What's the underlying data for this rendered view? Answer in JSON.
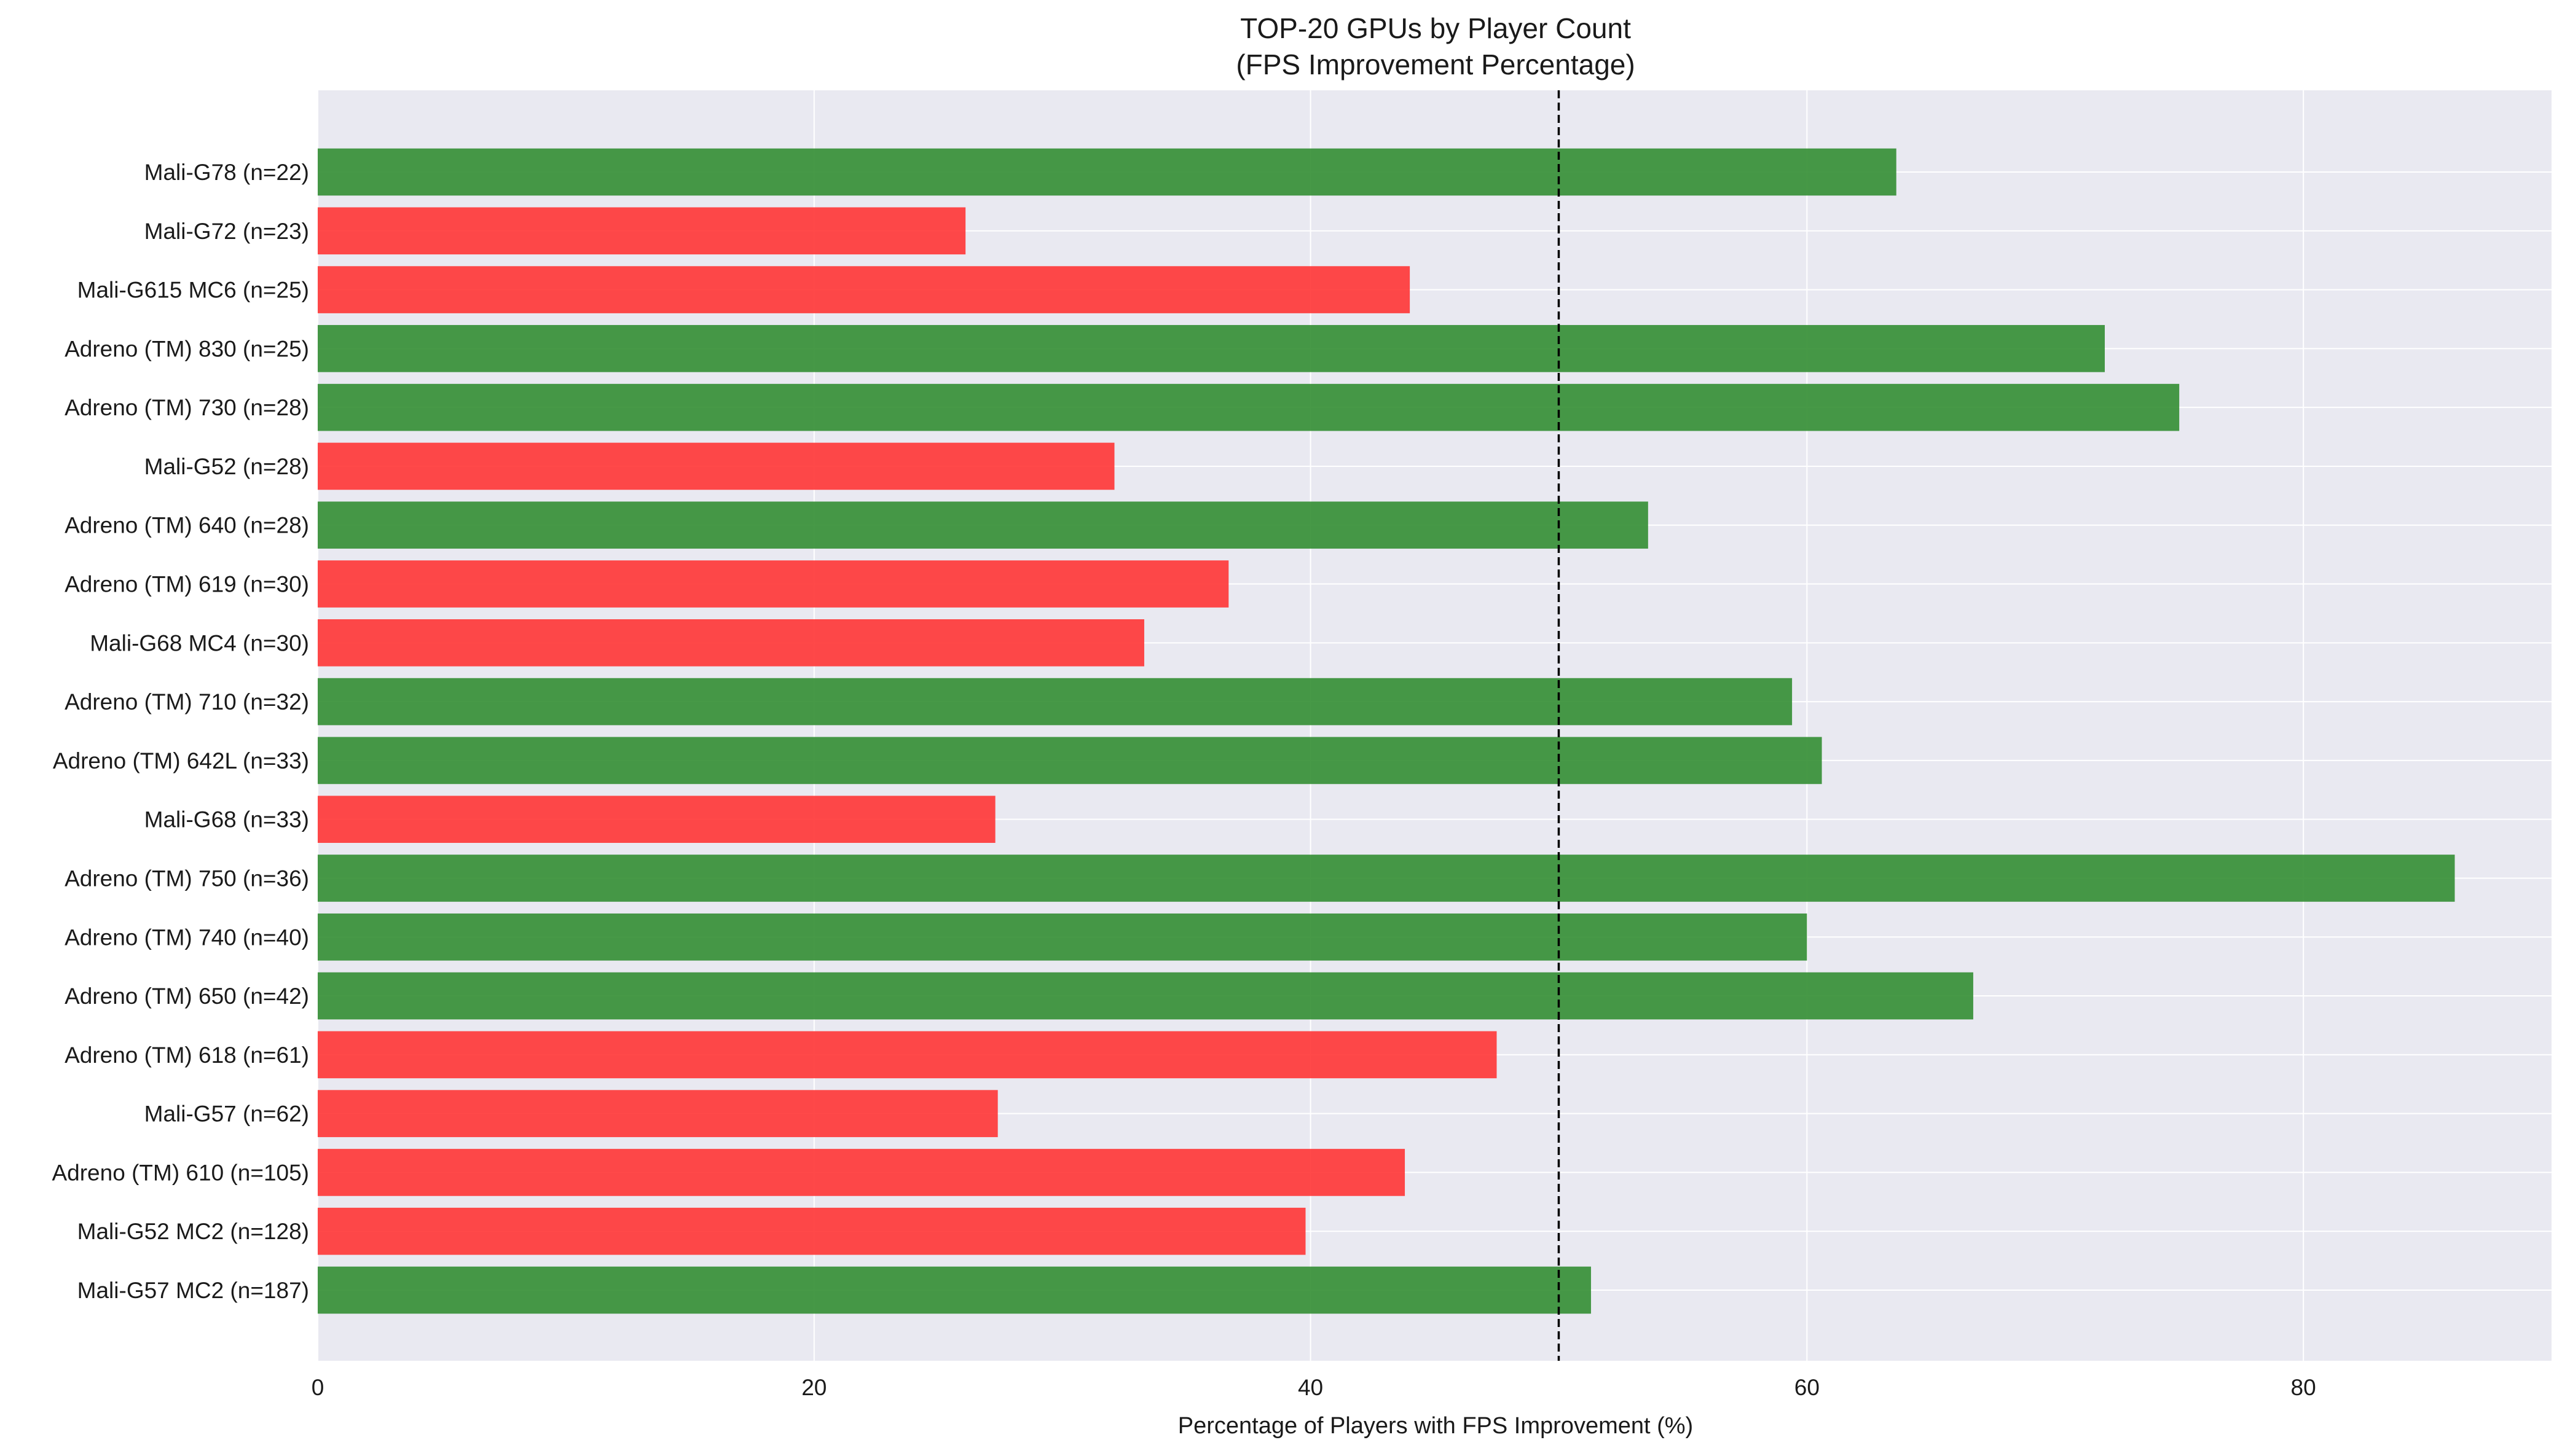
{
  "chart_data": {
    "type": "bar",
    "orientation": "horizontal",
    "title": "TOP-20 GPUs by Player Count",
    "subtitle": "(FPS Improvement Percentage)",
    "xlabel": "Percentage of Players with FPS Improvement (%)",
    "ylabel": "",
    "xlim": [
      0,
      90
    ],
    "xticks": [
      0,
      20,
      40,
      60,
      80
    ],
    "reference_line": 50,
    "grid": true,
    "colors": {
      "above": "#2e8b2e",
      "below": "#ff3030",
      "background": "#e9e9f1",
      "grid": "#ffffff",
      "refline": "#000000"
    },
    "categories": [
      "Mali-G78 (n=22)",
      "Mali-G72 (n=23)",
      "Mali-G615 MC6 (n=25)",
      "Adreno (TM) 830 (n=25)",
      "Adreno (TM) 730 (n=28)",
      "Mali-G52 (n=28)",
      "Adreno (TM) 640 (n=28)",
      "Adreno (TM) 619 (n=30)",
      "Mali-G68 MC4 (n=30)",
      "Adreno (TM) 710 (n=32)",
      "Adreno (TM) 642L (n=33)",
      "Mali-G68 (n=33)",
      "Adreno (TM) 750 (n=36)",
      "Adreno (TM) 740 (n=40)",
      "Adreno (TM) 650 (n=42)",
      "Adreno (TM) 618 (n=61)",
      "Mali-G57 (n=62)",
      "Adreno (TM) 610 (n=105)",
      "Mali-G52 MC2 (n=128)",
      "Mali-G57 MC2 (n=187)"
    ],
    "values": [
      63.6,
      26.1,
      44.0,
      72.0,
      75.0,
      32.1,
      53.6,
      36.7,
      33.3,
      59.4,
      60.6,
      27.3,
      86.1,
      60.0,
      66.7,
      47.5,
      27.4,
      43.8,
      39.8,
      51.3
    ]
  }
}
